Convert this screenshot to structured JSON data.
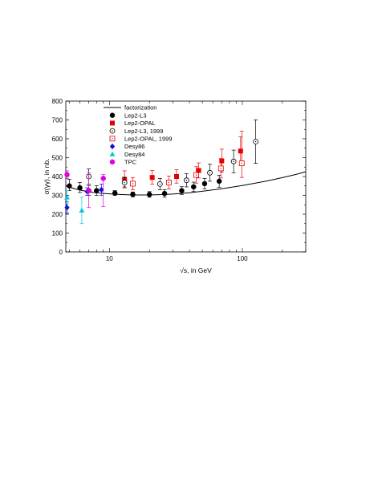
{
  "chart_data": {
    "type": "scatter",
    "title": "",
    "xlabel": "√s, in GeV",
    "ylabel": "σ(γγ), in nb.",
    "x_scale": "log",
    "xlim": [
      4.7,
      300
    ],
    "ylim": [
      0,
      800
    ],
    "x_ticks": [
      {
        "value": 10,
        "label": "10"
      },
      {
        "value": 100,
        "label": "100"
      }
    ],
    "y_ticks": [
      0,
      100,
      200,
      300,
      400,
      500,
      600,
      700,
      800
    ],
    "grid": false,
    "legend_position": "top-left",
    "legend": [
      {
        "label": "factorization",
        "marker": "line",
        "color": "#000000"
      },
      {
        "label": "Lep2-L3",
        "marker": "filled-circle",
        "color": "#000000"
      },
      {
        "label": "Lep2-OPAL",
        "marker": "filled-square",
        "color": "#e60000"
      },
      {
        "label": "Lep2-L3, 1999",
        "marker": "open-circle-dot",
        "color": "#000000"
      },
      {
        "label": "Lep2-OPAL, 1999",
        "marker": "open-square-dot",
        "color": "#e60000"
      },
      {
        "label": "Desy86",
        "marker": "filled-diamond",
        "color": "#1010e0"
      },
      {
        "label": "Desy84",
        "marker": "filled-triangle",
        "color": "#00c8d8"
      },
      {
        "label": "TPC",
        "marker": "filled-circle",
        "color": "#e000e0"
      }
    ],
    "curve": {
      "name": "factorization",
      "x": [
        4.7,
        5,
        5.5,
        6,
        7,
        8,
        9,
        10,
        12,
        15,
        20,
        25,
        30,
        40,
        50,
        70,
        100,
        150,
        200,
        250,
        300
      ],
      "y": [
        350,
        343,
        335,
        328,
        319,
        313,
        310,
        308,
        305,
        302,
        302,
        304,
        307,
        314,
        322,
        335,
        352,
        375,
        394,
        410,
        425
      ]
    },
    "series": [
      {
        "name": "Lep2-L3",
        "marker": "filled-circle",
        "color": "#000000",
        "points": [
          {
            "x": 5.0,
            "y": 350,
            "lo": 325,
            "hi": 385
          },
          {
            "x": 6.0,
            "y": 340,
            "lo": 315,
            "hi": 368
          },
          {
            "x": 7.0,
            "y": 325,
            "lo": 300,
            "hi": 352
          },
          {
            "x": 8.0,
            "y": 325,
            "lo": 300,
            "hi": 352
          },
          {
            "x": 11.0,
            "y": 312,
            "lo": 300,
            "hi": 325
          },
          {
            "x": 15.0,
            "y": 305,
            "lo": 292,
            "hi": 318
          },
          {
            "x": 20.0,
            "y": 305,
            "lo": 290,
            "hi": 320
          },
          {
            "x": 26.0,
            "y": 310,
            "lo": 290,
            "hi": 330
          },
          {
            "x": 35.0,
            "y": 325,
            "lo": 305,
            "hi": 346
          },
          {
            "x": 43.0,
            "y": 345,
            "lo": 320,
            "hi": 370
          },
          {
            "x": 52.0,
            "y": 362,
            "lo": 335,
            "hi": 390
          },
          {
            "x": 67.0,
            "y": 375,
            "lo": 343,
            "hi": 407
          }
        ]
      },
      {
        "name": "Lep2-OPAL",
        "marker": "filled-square",
        "color": "#e60000",
        "points": [
          {
            "x": 13.0,
            "y": 385,
            "lo": 345,
            "hi": 430
          },
          {
            "x": 21.0,
            "y": 395,
            "lo": 360,
            "hi": 432
          },
          {
            "x": 32.0,
            "y": 400,
            "lo": 365,
            "hi": 436
          },
          {
            "x": 47.0,
            "y": 432,
            "lo": 392,
            "hi": 472
          },
          {
            "x": 70.0,
            "y": 483,
            "lo": 423,
            "hi": 545
          },
          {
            "x": 97.0,
            "y": 535,
            "lo": 460,
            "hi": 610
          }
        ]
      },
      {
        "name": "Lep2-L3, 1999",
        "marker": "open-circle-dot",
        "color": "#000000",
        "points": [
          {
            "x": 7.0,
            "y": 400,
            "lo": 360,
            "hi": 440
          },
          {
            "x": 13.0,
            "y": 368,
            "lo": 340,
            "hi": 396
          },
          {
            "x": 24.0,
            "y": 360,
            "lo": 330,
            "hi": 390
          },
          {
            "x": 38.0,
            "y": 380,
            "lo": 345,
            "hi": 415
          },
          {
            "x": 57.0,
            "y": 420,
            "lo": 375,
            "hi": 465
          },
          {
            "x": 86.0,
            "y": 480,
            "lo": 420,
            "hi": 540
          },
          {
            "x": 126.0,
            "y": 585,
            "lo": 470,
            "hi": 700
          }
        ]
      },
      {
        "name": "Lep2-OPAL, 1999",
        "marker": "open-square-dot",
        "color": "#e60000",
        "points": [
          {
            "x": 15.0,
            "y": 362,
            "lo": 330,
            "hi": 394
          },
          {
            "x": 28.0,
            "y": 368,
            "lo": 335,
            "hi": 402
          },
          {
            "x": 45.0,
            "y": 408,
            "lo": 365,
            "hi": 452
          },
          {
            "x": 69.0,
            "y": 443,
            "lo": 392,
            "hi": 495
          },
          {
            "x": 99.0,
            "y": 470,
            "lo": 395,
            "hi": 640
          }
        ]
      },
      {
        "name": "Desy86",
        "marker": "filled-diamond",
        "color": "#1010e0",
        "points": [
          {
            "x": 4.8,
            "y": 235,
            "lo": 205,
            "hi": 265
          },
          {
            "x": 6.8,
            "y": 320,
            "lo": 300,
            "hi": 340
          },
          {
            "x": 8.7,
            "y": 330,
            "lo": 300,
            "hi": 360
          }
        ]
      },
      {
        "name": "Desy84",
        "marker": "filled-triangle",
        "color": "#00c8d8",
        "points": [
          {
            "x": 4.8,
            "y": 290,
            "lo": 255,
            "hi": 325
          },
          {
            "x": 6.2,
            "y": 220,
            "lo": 150,
            "hi": 290
          }
        ]
      },
      {
        "name": "TPC",
        "marker": "filled-circle",
        "color": "#e000e0",
        "points": [
          {
            "x": 4.8,
            "y": 410,
            "lo": 390,
            "hi": 430
          },
          {
            "x": 7.0,
            "y": 325,
            "lo": 235,
            "hi": 420
          },
          {
            "x": 9.0,
            "y": 390,
            "lo": 240,
            "hi": 410
          }
        ]
      }
    ]
  }
}
